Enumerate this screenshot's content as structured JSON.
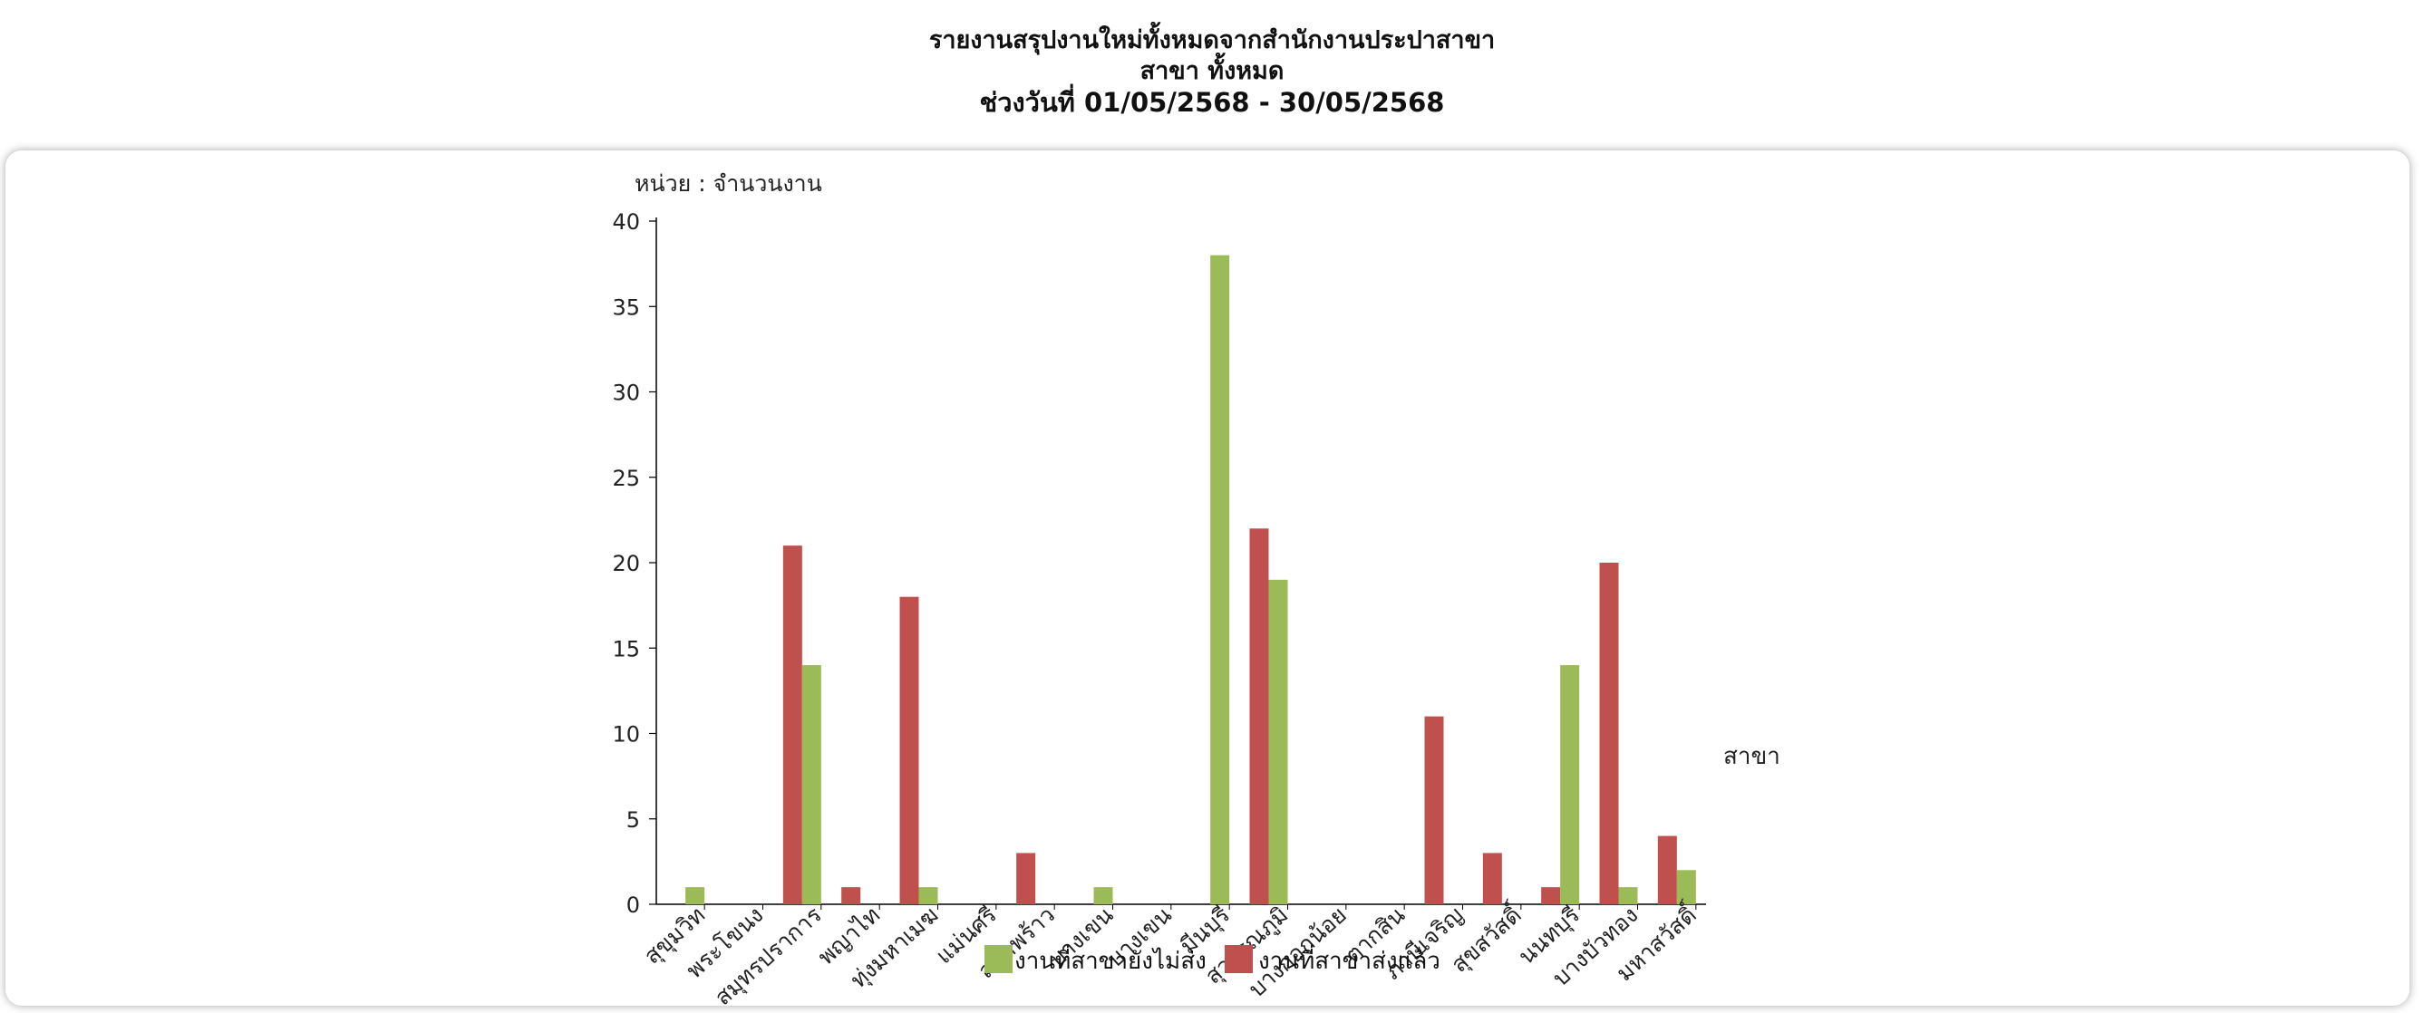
{
  "header": {
    "title": "รายงานสรุปงานใหม่ทั้งหมดจากสำนักงานประปาสาขา",
    "branch_line": "สาขา ทั้งหมด",
    "date_line": "ช่วงวันที่ 01/05/2568 - 30/05/2568"
  },
  "colors": {
    "green": "#9bbb59",
    "red": "#c0504d",
    "axis": "#000000"
  },
  "chart_data": {
    "type": "bar",
    "unit_label": "หน่วย : จำนวนงาน",
    "xlabel": "สาขา",
    "ylim": [
      0,
      40
    ],
    "yticks": [
      0,
      5,
      10,
      15,
      20,
      25,
      30,
      35,
      40
    ],
    "grid": false,
    "legend_position": "bottom",
    "categories": [
      "สุขุมวิท",
      "พระโขนง",
      "สมุทรปราการ",
      "พญาไท",
      "ทุ่งมหาเมฆ",
      "แม่นศรี",
      "ลาดพร้าว",
      "บางเขน",
      "บางเขน",
      "มีนบุรี",
      "สุวรรณภูมิ",
      "บางกอกน้อย",
      "ตากสิน",
      "ภาษีเจริญ",
      "สุขสวัสดิ์",
      "นนทบุรี",
      "บางบัวทอง",
      "มหาสวัสดิ์"
    ],
    "series": [
      {
        "name": "งานที่สาขายังไม่ส่ง",
        "color": "#9bbb59",
        "values": [
          1,
          0,
          14,
          0,
          1,
          0,
          0,
          1,
          0,
          38,
          19,
          0,
          0,
          0,
          0,
          14,
          1,
          2
        ]
      },
      {
        "name": "งานที่สาขาส่งแล้ว",
        "color": "#c0504d",
        "values": [
          0,
          0,
          21,
          1,
          18,
          0,
          3,
          0,
          0,
          0,
          22,
          0,
          0,
          11,
          3,
          1,
          20,
          4
        ]
      }
    ]
  }
}
